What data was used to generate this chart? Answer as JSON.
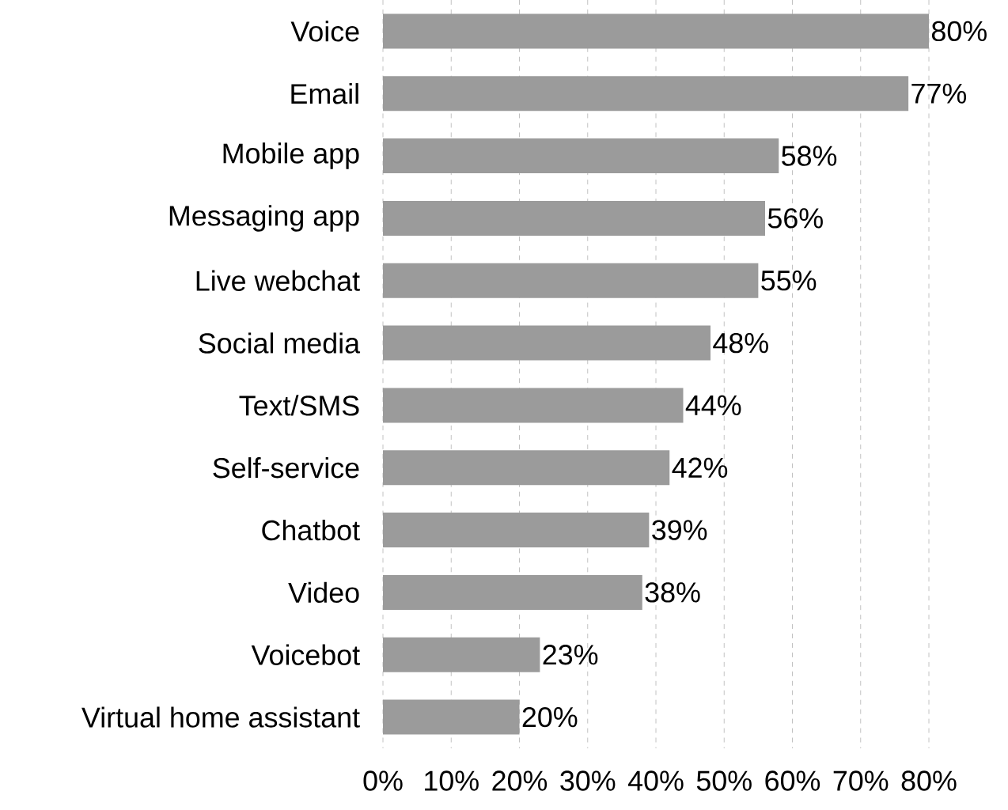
{
  "chart_data": {
    "type": "bar",
    "orientation": "horizontal",
    "categories": [
      "Voice",
      "Email",
      "Mobile app",
      "Messaging app",
      "Live webchat",
      "Social media",
      "Text/SMS",
      "Self-service",
      "Chatbot",
      "Video",
      "Voicebot",
      "Virtual home assistant"
    ],
    "values": [
      80,
      77,
      58,
      56,
      55,
      48,
      44,
      42,
      39,
      38,
      23,
      20
    ],
    "value_labels": [
      "80%",
      "77%",
      "58%",
      "56%",
      "55%",
      "48%",
      "44%",
      "42%",
      "39%",
      "38%",
      "23%",
      "20%"
    ],
    "color": "#9b9b9b",
    "xlim": [
      0,
      80
    ],
    "xticks": [
      {
        "value": 0,
        "label": "0%"
      },
      {
        "value": 10,
        "label": "10%"
      },
      {
        "value": 20,
        "label": "20%"
      },
      {
        "value": 30,
        "label": "30%"
      },
      {
        "value": 40,
        "label": "40%"
      },
      {
        "value": 50,
        "label": "50%"
      },
      {
        "value": 60,
        "label": "60%"
      },
      {
        "value": 70,
        "label": "70%"
      },
      {
        "value": 80,
        "label": "80%"
      }
    ],
    "grid": "x"
  }
}
